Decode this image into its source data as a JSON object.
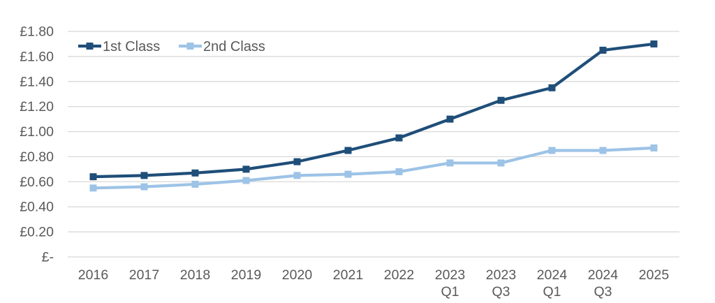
{
  "chart_data": {
    "type": "line",
    "title": "",
    "xlabel": "",
    "ylabel": "",
    "currency": "£",
    "categories": [
      "2016",
      "2017",
      "2018",
      "2019",
      "2020",
      "2021",
      "2022",
      "2023 Q1",
      "2023 Q3",
      "2024 Q1",
      "2024 Q3",
      "2025"
    ],
    "series": [
      {
        "name": "1st Class",
        "color": "#1F4E79",
        "marker": "square",
        "values": [
          0.64,
          0.65,
          0.67,
          0.7,
          0.76,
          0.85,
          0.95,
          1.1,
          1.25,
          1.35,
          1.65,
          1.7
        ]
      },
      {
        "name": "2nd Class",
        "color": "#9DC3E6",
        "marker": "square",
        "values": [
          0.55,
          0.56,
          0.58,
          0.61,
          0.65,
          0.66,
          0.68,
          0.75,
          0.75,
          0.85,
          0.85,
          0.87
        ]
      }
    ],
    "ylim": [
      0,
      1.8
    ],
    "ytick_step": 0.2,
    "ytick_labels": [
      "£-",
      "£0.20",
      "£0.40",
      "£0.60",
      "£0.80",
      "£1.00",
      "£1.20",
      "£1.40",
      "£1.60",
      "£1.80"
    ],
    "grid": true,
    "legend_position": "top-left-inside",
    "colors": {
      "axis_text": "#595959",
      "gridline": "#D6D6D6",
      "background": "#FFFFFF"
    }
  }
}
